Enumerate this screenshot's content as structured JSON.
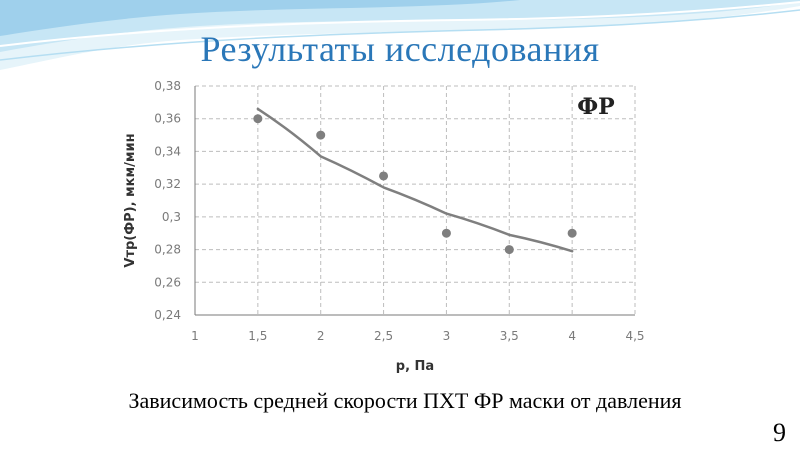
{
  "slide": {
    "title": "Результаты исследования",
    "caption": "Зависимость средней скорости ПХТ ФР маски от давления",
    "number": "9"
  },
  "colors": {
    "title": "#2a77b8",
    "swoosh_light": "#d6eef8",
    "swoosh_mid": "#a9d6ee",
    "swoosh_dark": "#6fb5de",
    "marker": "#7f7f7f",
    "trendline": "#7f7f7f",
    "grid": "#bdbdbd",
    "axis": "#7a7a7a"
  },
  "chart_data": {
    "type": "scatter",
    "badge": "ФР",
    "xlabel": "p, Па",
    "ylabel": "Vтр(ФР), мкм/мин",
    "xlim": [
      1,
      4.5
    ],
    "ylim": [
      0.24,
      0.38
    ],
    "x_ticks": [
      1,
      1.5,
      2,
      2.5,
      3,
      3.5,
      4,
      4.5
    ],
    "x_tick_labels": [
      "1",
      "1,5",
      "2",
      "2,5",
      "3",
      "3,5",
      "4",
      "4,5"
    ],
    "y_ticks": [
      0.24,
      0.26,
      0.28,
      0.3,
      0.32,
      0.34,
      0.36,
      0.38
    ],
    "y_tick_labels": [
      "0,24",
      "0,26",
      "0,28",
      "0,3",
      "0,32",
      "0,34",
      "0,36",
      "0,38"
    ],
    "grid": "dashed",
    "series": [
      {
        "points": [
          {
            "x": 1.5,
            "y": 0.36
          },
          {
            "x": 2.0,
            "y": 0.35
          },
          {
            "x": 2.5,
            "y": 0.325
          },
          {
            "x": 3.0,
            "y": 0.29
          },
          {
            "x": 3.5,
            "y": 0.28
          },
          {
            "x": 4.0,
            "y": 0.29
          }
        ]
      }
    ],
    "trendline": {
      "points": [
        {
          "x": 1.5,
          "y": 0.366
        },
        {
          "x": 2.0,
          "y": 0.337
        },
        {
          "x": 2.5,
          "y": 0.318
        },
        {
          "x": 3.0,
          "y": 0.302
        },
        {
          "x": 3.5,
          "y": 0.289
        },
        {
          "x": 4.0,
          "y": 0.279
        }
      ]
    }
  }
}
